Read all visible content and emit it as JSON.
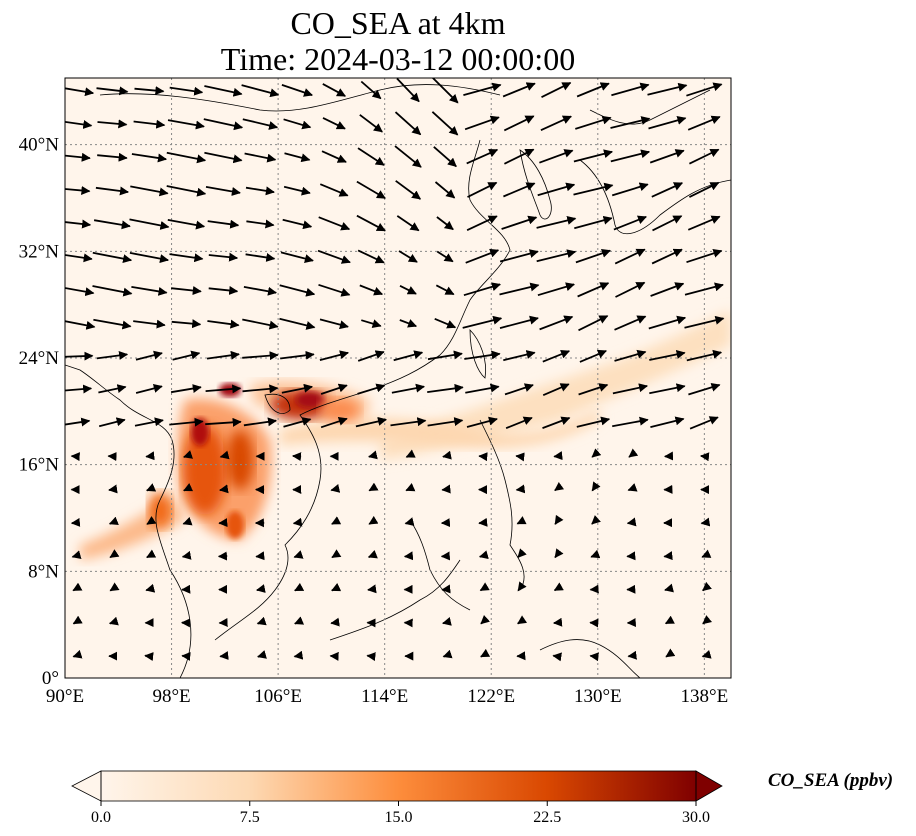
{
  "title": {
    "line1": "CO_SEA at 4km",
    "line2": "Time: 2024-03-12 00:00:00"
  },
  "map": {
    "extent": {
      "lon": [
        90,
        140
      ],
      "lat": [
        0,
        45
      ]
    },
    "x_ticks": [
      {
        "value": 90,
        "label": "90°E"
      },
      {
        "value": 98,
        "label": "98°E"
      },
      {
        "value": 106,
        "label": "106°E"
      },
      {
        "value": 114,
        "label": "114°E"
      },
      {
        "value": 122,
        "label": "122°E"
      },
      {
        "value": 130,
        "label": "130°E"
      },
      {
        "value": 138,
        "label": "138°E"
      }
    ],
    "y_ticks": [
      {
        "value": 0,
        "label": "0°"
      },
      {
        "value": 8,
        "label": "8°N"
      },
      {
        "value": 16,
        "label": "16°N"
      },
      {
        "value": 24,
        "label": "24°N"
      },
      {
        "value": 32,
        "label": "32°N"
      },
      {
        "value": 40,
        "label": "40°N"
      }
    ],
    "gridlines": true
  },
  "colorbar": {
    "label": "CO_SEA (ppbv)",
    "ticks": [
      "0.0",
      "7.5",
      "15.0",
      "22.5",
      "30.0"
    ],
    "range": [
      0,
      30
    ],
    "colormap": [
      "#fff5eb",
      "#fdd0a2",
      "#fd8d3c",
      "#d94801",
      "#7f0000"
    ],
    "extend": "both"
  }
}
